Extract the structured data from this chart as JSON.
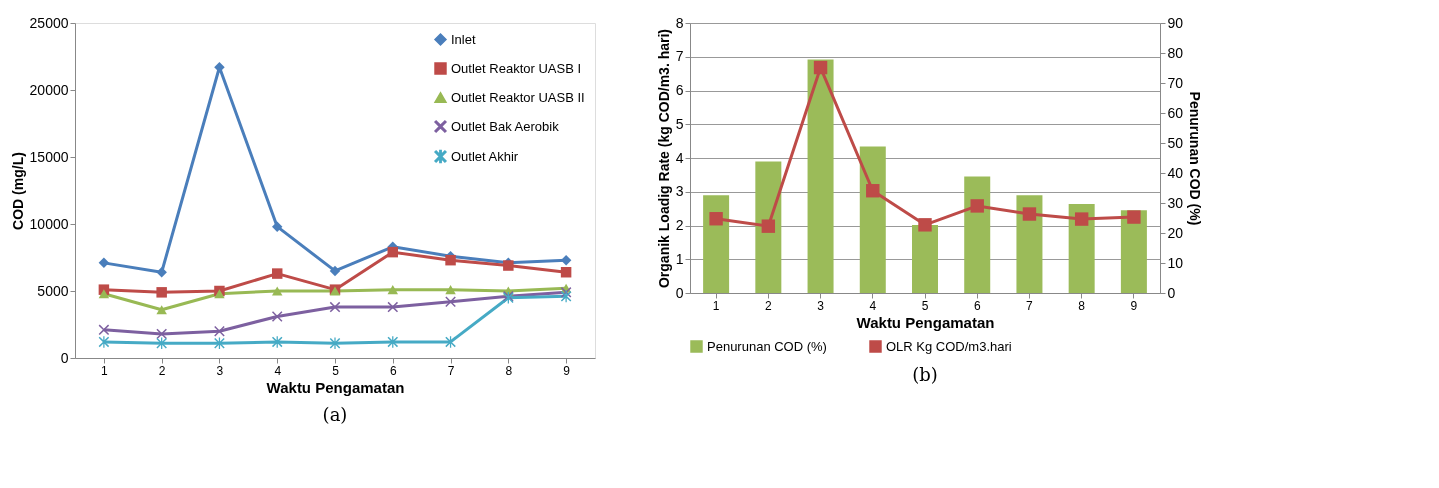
{
  "chart_data": [
    {
      "type": "line",
      "categories": [
        "1",
        "2",
        "3",
        "4",
        "5",
        "6",
        "7",
        "8",
        "9"
      ],
      "xlabel": "Waktu  Pengamatan",
      "ylabel": "COD (mg/L)",
      "ylim": [
        0,
        25000
      ],
      "yticks": [
        0,
        5000,
        10000,
        15000,
        20000,
        25000
      ],
      "grid": false,
      "legend": "top right",
      "annotations": [
        "(a)"
      ],
      "series": [
        {
          "name": "Inlet",
          "color": "#4a7ebb",
          "marker": "diamond",
          "values": [
            7100,
            6400,
            21700,
            9800,
            6500,
            8300,
            7600,
            7100,
            7300
          ]
        },
        {
          "name": "Outlet Reaktor UASB I",
          "color": "#be4b48",
          "marker": "square",
          "values": [
            5100,
            4900,
            5000,
            6300,
            5100,
            7900,
            7300,
            6900,
            6400
          ]
        },
        {
          "name": "Outlet Reaktor UASB II",
          "color": "#98b954",
          "marker": "triangle",
          "values": [
            4800,
            3600,
            4800,
            5000,
            5000,
            5100,
            5100,
            5000,
            5200
          ]
        },
        {
          "name": "Outlet Bak Aerobik",
          "color": "#7d60a0",
          "marker": "cross",
          "values": [
            2100,
            1800,
            2000,
            3100,
            3800,
            3800,
            4200,
            4600,
            4900
          ]
        },
        {
          "name": "Outlet Akhir",
          "color": "#46aac5",
          "marker": "star",
          "values": [
            1200,
            1100,
            1100,
            1200,
            1100,
            1200,
            1200,
            4500,
            4600
          ]
        }
      ]
    },
    {
      "type": "bar",
      "categories": [
        "1",
        "2",
        "3",
        "4",
        "5",
        "6",
        "7",
        "8",
        "9"
      ],
      "xlabel": "Waktu Pengamatan",
      "ylabel": "Organik Loadig Rate (kg COD/m3. hari)",
      "y2label": "Penurunan COD (%)",
      "ylim": [
        0,
        8
      ],
      "yticks": [
        0,
        1,
        2,
        3,
        4,
        5,
        6,
        7,
        8
      ],
      "y2lim": [
        0,
        90
      ],
      "y2ticks": [
        0,
        10,
        20,
        30,
        40,
        50,
        60,
        70,
        80,
        90
      ],
      "grid": "y",
      "legend": "bottom",
      "annotations": [
        "(b)"
      ],
      "series": [
        {
          "name": "Penurunan COD (%)",
          "type": "bar",
          "axis": "y2",
          "color": "#9bbb59",
          "values": [
            32.6,
            43.8,
            77.8,
            48.8,
            22.7,
            38.8,
            32.6,
            29.7,
            27.6
          ]
        },
        {
          "name": "OLR Kg COD/m3.hari",
          "type": "line",
          "axis": "y",
          "marker": "square",
          "color": "#be4b48",
          "values": [
            2.2,
            1.98,
            6.68,
            3.03,
            2.02,
            2.58,
            2.34,
            2.19,
            2.25
          ]
        }
      ]
    }
  ]
}
